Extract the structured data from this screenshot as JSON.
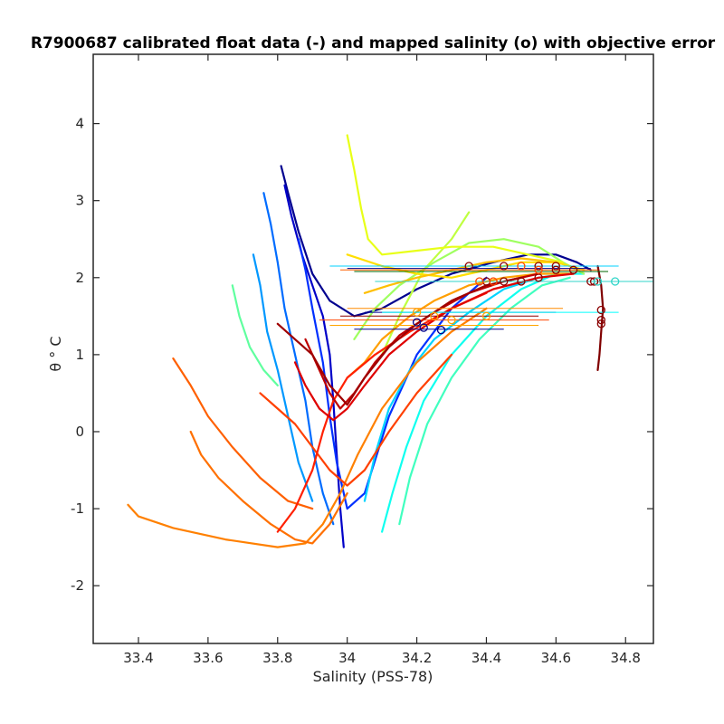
{
  "chart_data": {
    "type": "line",
    "title": "R7900687 calibrated float data (-) and mapped salinity (o) with objective error",
    "xlabel": "Salinity (PSS-78)",
    "ylabel": "θ ° C",
    "xlim": [
      33.27,
      34.88
    ],
    "ylim": [
      -2.75,
      4.9
    ],
    "xticks": [
      33.4,
      33.6,
      33.8,
      34.0,
      34.2,
      34.4,
      34.6,
      34.8
    ],
    "xtick_labels": [
      "33.4",
      "33.6",
      "33.8",
      "34",
      "34.2",
      "34.4",
      "34.6",
      "34.8"
    ],
    "yticks": [
      -2,
      -1,
      0,
      1,
      2,
      3,
      4
    ],
    "ytick_labels": [
      "-2",
      "-1",
      "0",
      "1",
      "2",
      "3",
      "4"
    ],
    "grid": false,
    "legend": "none",
    "colormap": "jet",
    "series": [
      {
        "color": "#00008f",
        "values": [
          [
            33.81,
            3.45
          ],
          [
            33.83,
            3.1
          ],
          [
            33.86,
            2.6
          ],
          [
            33.9,
            2.05
          ],
          [
            33.95,
            1.7
          ],
          [
            34.02,
            1.5
          ],
          [
            34.1,
            1.6
          ],
          [
            34.2,
            1.85
          ],
          [
            34.3,
            2.05
          ],
          [
            34.42,
            2.2
          ],
          [
            34.52,
            2.3
          ],
          [
            34.6,
            2.3
          ],
          [
            34.66,
            2.2
          ],
          [
            34.7,
            2.1
          ]
        ]
      },
      {
        "color": "#0000c8",
        "values": [
          [
            33.82,
            3.2
          ],
          [
            33.84,
            2.8
          ],
          [
            33.87,
            2.3
          ],
          [
            33.9,
            1.9
          ],
          [
            33.93,
            1.5
          ],
          [
            33.95,
            1.0
          ],
          [
            33.96,
            0.4
          ],
          [
            33.97,
            -0.3
          ],
          [
            33.98,
            -1.0
          ],
          [
            33.99,
            -1.5
          ]
        ]
      },
      {
        "color": "#0030ff",
        "values": [
          [
            33.86,
            2.5
          ],
          [
            33.88,
            2.1
          ],
          [
            33.9,
            1.6
          ],
          [
            33.93,
            0.9
          ],
          [
            33.95,
            0.2
          ],
          [
            33.97,
            -0.4
          ],
          [
            34.0,
            -1.0
          ],
          [
            34.05,
            -0.8
          ],
          [
            34.12,
            0.2
          ],
          [
            34.2,
            1.0
          ],
          [
            34.3,
            1.6
          ],
          [
            34.4,
            2.0
          ]
        ]
      },
      {
        "color": "#006cff",
        "values": [
          [
            33.76,
            3.1
          ],
          [
            33.78,
            2.7
          ],
          [
            33.8,
            2.2
          ],
          [
            33.82,
            1.6
          ],
          [
            33.85,
            1.0
          ],
          [
            33.88,
            0.4
          ],
          [
            33.9,
            -0.2
          ],
          [
            33.93,
            -0.8
          ],
          [
            33.96,
            -1.2
          ]
        ]
      },
      {
        "color": "#0098ff",
        "values": [
          [
            33.73,
            2.3
          ],
          [
            33.75,
            1.9
          ],
          [
            33.77,
            1.3
          ],
          [
            33.8,
            0.8
          ],
          [
            33.83,
            0.2
          ],
          [
            33.86,
            -0.4
          ],
          [
            33.9,
            -0.9
          ]
        ]
      },
      {
        "color": "#00d4ff",
        "values": [
          [
            34.05,
            -0.9
          ],
          [
            34.08,
            -0.3
          ],
          [
            34.12,
            0.3
          ],
          [
            34.18,
            0.8
          ],
          [
            34.25,
            1.2
          ],
          [
            34.35,
            1.55
          ],
          [
            34.45,
            1.85
          ],
          [
            34.55,
            2.0
          ],
          [
            34.63,
            2.05
          ]
        ]
      },
      {
        "color": "#10ffef",
        "values": [
          [
            34.1,
            -1.3
          ],
          [
            34.13,
            -0.8
          ],
          [
            34.17,
            -0.2
          ],
          [
            34.22,
            0.4
          ],
          [
            34.3,
            1.0
          ],
          [
            34.4,
            1.5
          ],
          [
            34.5,
            1.85
          ],
          [
            34.6,
            2.05
          ],
          [
            34.68,
            2.05
          ]
        ]
      },
      {
        "color": "#40ffbf",
        "values": [
          [
            34.15,
            -1.2
          ],
          [
            34.18,
            -0.6
          ],
          [
            34.23,
            0.1
          ],
          [
            34.3,
            0.7
          ],
          [
            34.38,
            1.2
          ],
          [
            34.47,
            1.6
          ],
          [
            34.56,
            1.9
          ],
          [
            34.64,
            2.0
          ]
        ]
      },
      {
        "color": "#60ff9f",
        "values": [
          [
            33.67,
            1.9
          ],
          [
            33.69,
            1.5
          ],
          [
            33.72,
            1.1
          ],
          [
            33.76,
            0.8
          ],
          [
            33.8,
            0.6
          ]
        ]
      },
      {
        "color": "#9fff60",
        "values": [
          [
            34.02,
            1.2
          ],
          [
            34.08,
            1.6
          ],
          [
            34.15,
            1.9
          ],
          [
            34.25,
            2.2
          ],
          [
            34.35,
            2.45
          ],
          [
            34.45,
            2.5
          ],
          [
            34.55,
            2.4
          ],
          [
            34.62,
            2.2
          ],
          [
            34.68,
            2.05
          ]
        ]
      },
      {
        "color": "#bfff40",
        "values": [
          [
            34.1,
            1.0
          ],
          [
            34.15,
            1.5
          ],
          [
            34.22,
            2.1
          ],
          [
            34.3,
            2.5
          ],
          [
            34.35,
            2.85
          ]
        ]
      },
      {
        "color": "#e8ff18",
        "values": [
          [
            34.0,
            3.85
          ],
          [
            34.02,
            3.4
          ],
          [
            34.04,
            2.9
          ],
          [
            34.06,
            2.5
          ],
          [
            34.1,
            2.3
          ],
          [
            34.2,
            2.35
          ],
          [
            34.3,
            2.4
          ],
          [
            34.42,
            2.4
          ],
          [
            34.52,
            2.3
          ],
          [
            34.62,
            2.2
          ]
        ]
      },
      {
        "color": "#ffdf00",
        "values": [
          [
            34.0,
            2.3
          ],
          [
            34.1,
            2.15
          ],
          [
            34.2,
            2.05
          ],
          [
            34.3,
            2.0
          ],
          [
            34.4,
            2.1
          ],
          [
            34.5,
            2.2
          ],
          [
            34.6,
            2.2
          ],
          [
            34.68,
            2.1
          ]
        ]
      },
      {
        "color": "#ffbf00",
        "values": [
          [
            34.05,
            1.8
          ],
          [
            34.12,
            1.9
          ],
          [
            34.2,
            2.0
          ],
          [
            34.3,
            2.1
          ],
          [
            34.4,
            2.2
          ],
          [
            34.5,
            2.25
          ],
          [
            34.6,
            2.2
          ]
        ]
      },
      {
        "color": "#ff9f00",
        "values": [
          [
            34.0,
            0.7
          ],
          [
            34.05,
            0.9
          ],
          [
            34.1,
            1.2
          ],
          [
            34.18,
            1.5
          ],
          [
            34.25,
            1.7
          ],
          [
            34.35,
            1.9
          ],
          [
            34.45,
            2.0
          ],
          [
            34.55,
            2.05
          ],
          [
            34.65,
            2.05
          ]
        ]
      },
      {
        "color": "#ff8000",
        "values": [
          [
            33.37,
            -0.95
          ],
          [
            33.4,
            -1.1
          ],
          [
            33.5,
            -1.25
          ],
          [
            33.65,
            -1.4
          ],
          [
            33.8,
            -1.5
          ],
          [
            33.88,
            -1.45
          ],
          [
            33.93,
            -1.2
          ],
          [
            33.98,
            -0.8
          ],
          [
            34.03,
            -0.3
          ],
          [
            34.1,
            0.3
          ],
          [
            34.2,
            0.9
          ],
          [
            34.3,
            1.3
          ],
          [
            34.4,
            1.6
          ]
        ]
      },
      {
        "color": "#ff7000",
        "values": [
          [
            33.55,
            0.0
          ],
          [
            33.58,
            -0.3
          ],
          [
            33.63,
            -0.6
          ],
          [
            33.7,
            -0.9
          ],
          [
            33.78,
            -1.2
          ],
          [
            33.85,
            -1.4
          ],
          [
            33.9,
            -1.45
          ],
          [
            33.95,
            -1.2
          ],
          [
            34.0,
            -0.8
          ]
        ]
      },
      {
        "color": "#ff6000",
        "values": [
          [
            33.5,
            0.95
          ],
          [
            33.55,
            0.6
          ],
          [
            33.6,
            0.2
          ],
          [
            33.67,
            -0.2
          ],
          [
            33.75,
            -0.6
          ],
          [
            33.83,
            -0.9
          ],
          [
            33.9,
            -1.0
          ]
        ]
      },
      {
        "color": "#ff4000",
        "values": [
          [
            33.75,
            0.5
          ],
          [
            33.8,
            0.3
          ],
          [
            33.85,
            0.1
          ],
          [
            33.9,
            -0.2
          ],
          [
            33.95,
            -0.5
          ],
          [
            34.0,
            -0.7
          ],
          [
            34.05,
            -0.5
          ],
          [
            34.12,
            0.0
          ],
          [
            34.2,
            0.5
          ],
          [
            34.3,
            1.0
          ]
        ]
      },
      {
        "color": "#ff2000",
        "values": [
          [
            33.8,
            -1.3
          ],
          [
            33.85,
            -1.0
          ],
          [
            33.9,
            -0.5
          ],
          [
            33.93,
            0.0
          ],
          [
            33.96,
            0.4
          ],
          [
            34.0,
            0.7
          ],
          [
            34.08,
            1.0
          ],
          [
            34.18,
            1.3
          ],
          [
            34.3,
            1.6
          ],
          [
            34.4,
            1.8
          ]
        ]
      },
      {
        "color": "#df0000",
        "values": [
          [
            33.85,
            0.9
          ],
          [
            33.88,
            0.6
          ],
          [
            33.92,
            0.3
          ],
          [
            33.96,
            0.15
          ],
          [
            34.0,
            0.3
          ],
          [
            34.05,
            0.6
          ],
          [
            34.12,
            1.0
          ],
          [
            34.2,
            1.3
          ],
          [
            34.3,
            1.6
          ],
          [
            34.42,
            1.85
          ],
          [
            34.55,
            2.0
          ],
          [
            34.65,
            2.05
          ]
        ]
      },
      {
        "color": "#bf0000",
        "values": [
          [
            33.88,
            1.2
          ],
          [
            33.92,
            0.8
          ],
          [
            33.95,
            0.5
          ],
          [
            33.98,
            0.3
          ],
          [
            34.02,
            0.5
          ],
          [
            34.08,
            0.9
          ],
          [
            34.15,
            1.25
          ],
          [
            34.25,
            1.55
          ],
          [
            34.35,
            1.8
          ],
          [
            34.45,
            1.95
          ],
          [
            34.55,
            2.05
          ]
        ]
      },
      {
        "color": "#9f0000",
        "values": [
          [
            33.8,
            1.4
          ],
          [
            33.85,
            1.2
          ],
          [
            33.9,
            1.0
          ],
          [
            33.95,
            0.6
          ],
          [
            34.0,
            0.35
          ],
          [
            34.05,
            0.7
          ],
          [
            34.12,
            1.1
          ],
          [
            34.2,
            1.4
          ],
          [
            34.3,
            1.7
          ],
          [
            34.4,
            1.9
          ],
          [
            34.5,
            2.0
          ]
        ]
      },
      {
        "color": "#800000",
        "values": [
          [
            34.72,
            2.15
          ],
          [
            34.73,
            1.9
          ],
          [
            34.735,
            1.6
          ],
          [
            34.73,
            1.3
          ],
          [
            34.725,
            1.0
          ],
          [
            34.72,
            0.8
          ]
        ]
      }
    ],
    "mapped_salinity": [
      {
        "color": "#8b0000",
        "values": [
          [
            34.73,
            1.58
          ],
          [
            34.73,
            1.45
          ],
          [
            34.73,
            1.4
          ],
          [
            34.71,
            1.95
          ],
          [
            34.7,
            1.95
          ],
          [
            34.55,
            2.0
          ],
          [
            34.5,
            1.95
          ],
          [
            34.45,
            1.95
          ],
          [
            34.4,
            1.95
          ],
          [
            34.6,
            2.1
          ],
          [
            34.65,
            2.1
          ],
          [
            34.35,
            2.15
          ],
          [
            34.45,
            2.15
          ],
          [
            34.55,
            2.15
          ],
          [
            34.6,
            2.15
          ]
        ]
      },
      {
        "color": "#ff4500",
        "values": [
          [
            34.55,
            2.1
          ],
          [
            34.5,
            2.15
          ],
          [
            34.38,
            1.95
          ],
          [
            34.42,
            1.95
          ]
        ]
      },
      {
        "color": "#30d5c8",
        "values": [
          [
            34.77,
            1.95
          ],
          [
            34.72,
            1.95
          ]
        ]
      },
      {
        "color": "#ffa500",
        "values": [
          [
            34.2,
            1.55
          ],
          [
            34.25,
            1.5
          ],
          [
            34.3,
            1.45
          ],
          [
            34.4,
            1.5
          ]
        ]
      },
      {
        "color": "#00008b",
        "values": [
          [
            34.27,
            1.32
          ],
          [
            34.2,
            1.42
          ],
          [
            34.22,
            1.35
          ]
        ]
      }
    ],
    "objective_error_bars": [
      {
        "color": "#00008b",
        "y": 2.12,
        "x_range": [
          34.0,
          34.7
        ]
      },
      {
        "color": "#00d0ff",
        "y": 2.15,
        "x_range": [
          33.95,
          34.78
        ]
      },
      {
        "color": "#006400",
        "y": 2.08,
        "x_range": [
          34.02,
          34.75
        ]
      },
      {
        "color": "#ff6000",
        "y": 2.1,
        "x_range": [
          33.98,
          34.72
        ]
      },
      {
        "color": "#30d5c8",
        "y": 1.95,
        "x_range": [
          34.08,
          34.88
        ]
      },
      {
        "color": "#ff8c00",
        "y": 1.6,
        "x_range": [
          34.0,
          34.62
        ]
      },
      {
        "color": "#00008b",
        "y": 1.55,
        "x_range": [
          34.05,
          34.6
        ]
      },
      {
        "color": "#00ffff",
        "y": 1.55,
        "x_range": [
          34.1,
          34.78
        ]
      },
      {
        "color": "#ff4500",
        "y": 1.45,
        "x_range": [
          33.92,
          34.58
        ]
      },
      {
        "color": "#00008b",
        "y": 1.33,
        "x_range": [
          34.02,
          34.45
        ]
      },
      {
        "color": "#ffa500",
        "y": 1.38,
        "x_range": [
          33.95,
          34.55
        ]
      },
      {
        "color": "#8b0000",
        "y": 1.5,
        "x_range": [
          33.98,
          34.55
        ]
      }
    ]
  }
}
